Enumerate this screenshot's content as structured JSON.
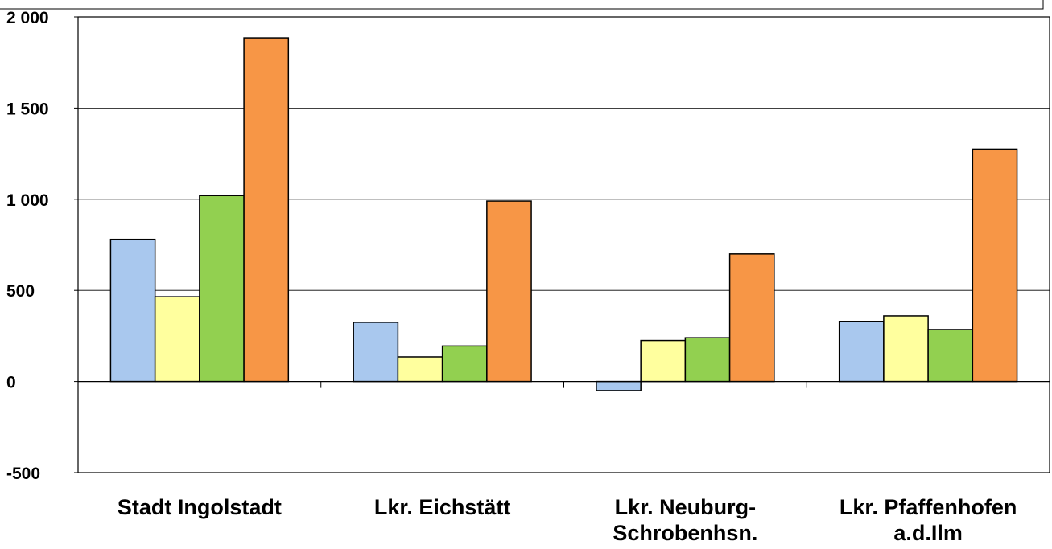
{
  "chart_data": {
    "type": "bar",
    "title": "",
    "xlabel": "",
    "ylabel": "",
    "categories": [
      [
        "Stadt Ingolstadt"
      ],
      [
        "Lkr. Eichstätt"
      ],
      [
        "Lkr. Neuburg-",
        "Schrobenhsn."
      ],
      [
        "Lkr. Pfaffenhofen",
        "a.d.Ilm"
      ]
    ],
    "ylim": [
      -500,
      2000
    ],
    "yticks": [
      -500,
      0,
      500,
      1000,
      1500,
      2000
    ],
    "ytick_labels": [
      "-500",
      "0",
      "500",
      "1 000",
      "1 500",
      "2 000"
    ],
    "grid": true,
    "legend": "none",
    "series": [
      {
        "values": [
          780,
          325,
          -50,
          330
        ],
        "color": "#a9c8ee"
      },
      {
        "values": [
          465,
          135,
          225,
          360
        ],
        "color": "#ffff9e"
      },
      {
        "values": [
          1020,
          195,
          240,
          285
        ],
        "color": "#92d050"
      },
      {
        "values": [
          1885,
          990,
          700,
          1275
        ],
        "color": "#f79646"
      }
    ]
  }
}
